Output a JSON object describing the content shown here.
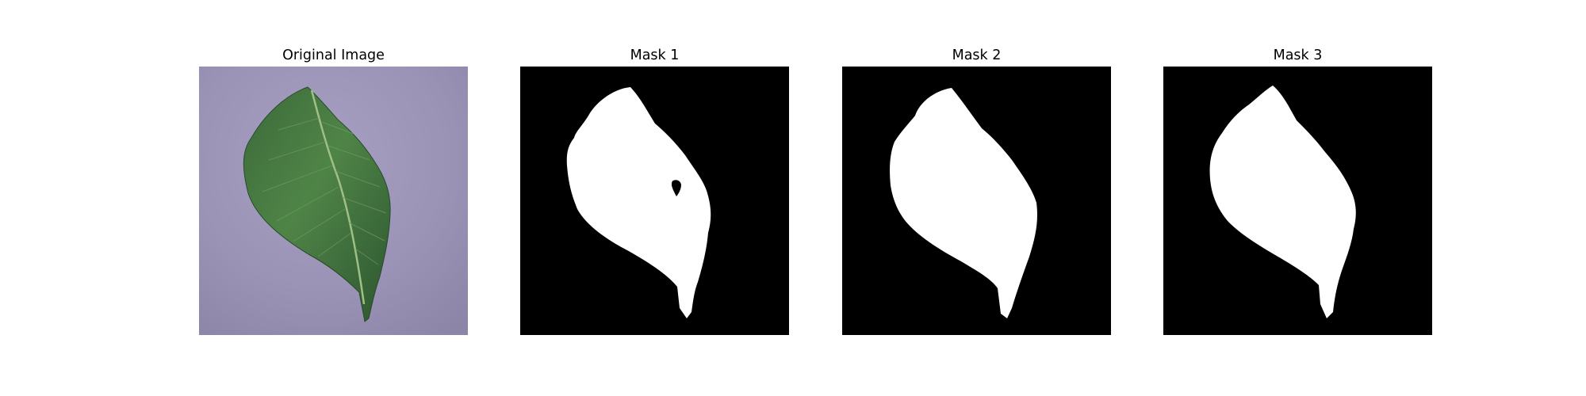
{
  "figure": {
    "panels": [
      {
        "title": "Original Image"
      },
      {
        "title": "Mask 1"
      },
      {
        "title": "Mask 2"
      },
      {
        "title": "Mask 3"
      }
    ]
  },
  "colors": {
    "background_photo": "#9a93b6",
    "leaf_dark": "#2f5a33",
    "leaf_mid": "#4c7d44",
    "mask_background": "#000000",
    "mask_foreground": "#ffffff"
  }
}
